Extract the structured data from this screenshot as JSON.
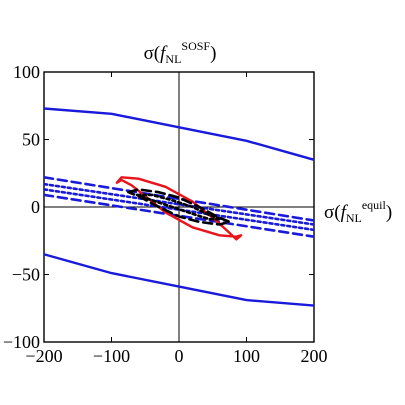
{
  "chart_data": {
    "type": "line",
    "title": "",
    "xlabel": {
      "main": "σ(",
      "var": "f",
      "sub": "NL",
      "sup": "equil",
      "close": ")"
    },
    "ylabel": {
      "main": "σ(",
      "var": "f",
      "sub": "NL",
      "sup": "SOSF",
      "close": ")"
    },
    "xlim": [
      -200,
      200
    ],
    "ylim": [
      -100,
      100
    ],
    "xticks": [
      -200,
      -100,
      0,
      100,
      200
    ],
    "yticks": [
      -100,
      -50,
      0,
      50,
      100
    ],
    "xtick_labels": [
      "−200",
      "−100",
      "0",
      "100",
      "200"
    ],
    "ytick_labels": [
      "−100",
      "−50",
      "0",
      "50",
      "100"
    ],
    "grid": false,
    "series": [
      {
        "style": "solid",
        "color": "#1a1adb",
        "x": [
          -200,
          -100,
          0,
          100,
          200
        ],
        "y": [
          73,
          69,
          59,
          49,
          35
        ]
      },
      {
        "style": "solid",
        "color": "#1a1adb",
        "x": [
          -200,
          -100,
          0,
          100,
          200
        ],
        "y": [
          -35,
          -49,
          -59,
          -69,
          -73
        ]
      },
      {
        "style": "dashed",
        "color": "#1a1adb",
        "x": [
          -200,
          200
        ],
        "y": [
          22,
          -10
        ]
      },
      {
        "style": "dashed",
        "color": "#1a1adb",
        "x": [
          -200,
          200
        ],
        "y": [
          9,
          -22
        ]
      },
      {
        "style": "dotted",
        "color": "#1a1adb",
        "x": [
          -200,
          200
        ],
        "y": [
          17,
          -13
        ]
      },
      {
        "style": "dotted",
        "color": "#1a1adb",
        "x": [
          -200,
          200
        ],
        "y": [
          13,
          -17
        ]
      },
      {
        "style": "solid",
        "color": "#e8131b",
        "x": [
          -92,
          -85,
          -60,
          -20,
          20,
          50,
          70,
          85,
          92,
          85,
          60,
          20,
          -20,
          -50,
          -70,
          -85,
          -92
        ],
        "y": [
          18,
          22,
          21,
          15,
          4,
          -8,
          -17,
          -24,
          -21,
          -22,
          -21,
          -15,
          -4,
          8,
          16,
          20,
          18
        ]
      },
      {
        "style": "dashed",
        "color": "#000000",
        "x": [
          -75,
          -60,
          -30,
          0,
          30,
          60,
          75,
          60,
          30,
          0,
          -30,
          -60,
          -75
        ],
        "y": [
          11,
          13,
          11,
          7,
          0,
          -8,
          -11,
          -13,
          -11,
          -7,
          0,
          8,
          11
        ]
      },
      {
        "style": "dotted",
        "color": "#000000",
        "x": [
          -62,
          -40,
          -10,
          20,
          45,
          62,
          45,
          20,
          -10,
          -40,
          -62
        ],
        "y": [
          9,
          9,
          5,
          0,
          -6,
          -9,
          -9,
          -5,
          0,
          5,
          9
        ]
      }
    ]
  }
}
